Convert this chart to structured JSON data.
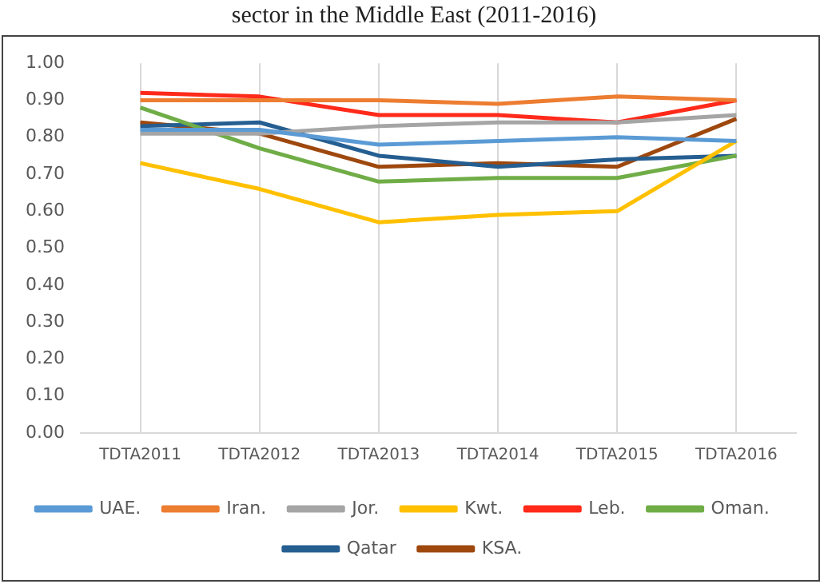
{
  "chart_data": {
    "type": "line",
    "title": "sector in the Middle East (2011-2016)",
    "categories": [
      "TDTA2011",
      "TDTA2012",
      "TDTA2013",
      "TDTA2014",
      "TDTA2015",
      "TDTA2016"
    ],
    "series": [
      {
        "name": "UAE.",
        "color": "#5b9bd5",
        "values": [
          0.82,
          0.82,
          0.78,
          0.79,
          0.8,
          0.79
        ]
      },
      {
        "name": "Iran.",
        "color": "#ed7d31",
        "values": [
          0.9,
          0.9,
          0.9,
          0.89,
          0.91,
          0.9
        ]
      },
      {
        "name": "Jor.",
        "color": "#a5a5a5",
        "values": [
          0.81,
          0.81,
          0.83,
          0.84,
          0.84,
          0.86
        ]
      },
      {
        "name": "Kwt.",
        "color": "#ffc000",
        "values": [
          0.73,
          0.66,
          0.57,
          0.59,
          0.6,
          0.79
        ]
      },
      {
        "name": "Leb.",
        "color": "#ff2a1a",
        "values": [
          0.92,
          0.91,
          0.86,
          0.86,
          0.84,
          0.9
        ]
      },
      {
        "name": "Oman.",
        "color": "#70ad47",
        "values": [
          0.88,
          0.77,
          0.68,
          0.69,
          0.69,
          0.75
        ]
      },
      {
        "name": "Qatar",
        "color": "#255e91",
        "values": [
          0.83,
          0.84,
          0.75,
          0.72,
          0.74,
          0.75
        ]
      },
      {
        "name": "KSA.",
        "color": "#9e480e",
        "values": [
          0.84,
          0.81,
          0.72,
          0.73,
          0.72,
          0.85
        ]
      }
    ],
    "ylim": [
      0,
      1
    ],
    "yticks": [
      {
        "value": 0,
        "label": "0.00"
      },
      {
        "value": 0.1,
        "label": "0.10"
      },
      {
        "value": 0.2,
        "label": "0.20"
      },
      {
        "value": 0.3,
        "label": "0.30"
      },
      {
        "value": 0.4,
        "label": "0.40"
      },
      {
        "value": 0.5,
        "label": "0.50"
      },
      {
        "value": 0.6,
        "label": "0.60"
      },
      {
        "value": 0.7,
        "label": "0.70"
      },
      {
        "value": 0.8,
        "label": "0.80"
      },
      {
        "value": 0.9,
        "label": "0.90"
      },
      {
        "value": 1,
        "label": "1.00"
      }
    ],
    "grid": "x",
    "legend": "bottom",
    "marker": "none",
    "line_style": "solid"
  }
}
